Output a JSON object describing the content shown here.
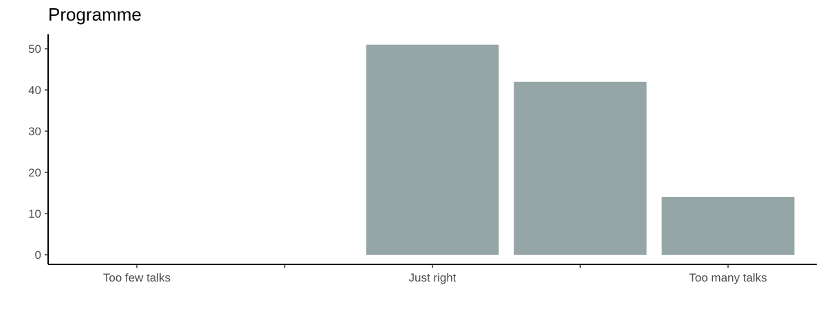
{
  "chart_data": {
    "type": "bar",
    "title": "Programme",
    "xlabel": "",
    "ylabel": "",
    "categories": [
      "Too few talks",
      "",
      "Just right",
      "",
      "Too many talks"
    ],
    "values": [
      0,
      0,
      51,
      42,
      14
    ],
    "ylim": [
      0,
      53
    ],
    "yticks": [
      0,
      10,
      20,
      30,
      40,
      50
    ],
    "grid": false,
    "legend": "none",
    "bar_color": "#96a6a6"
  }
}
